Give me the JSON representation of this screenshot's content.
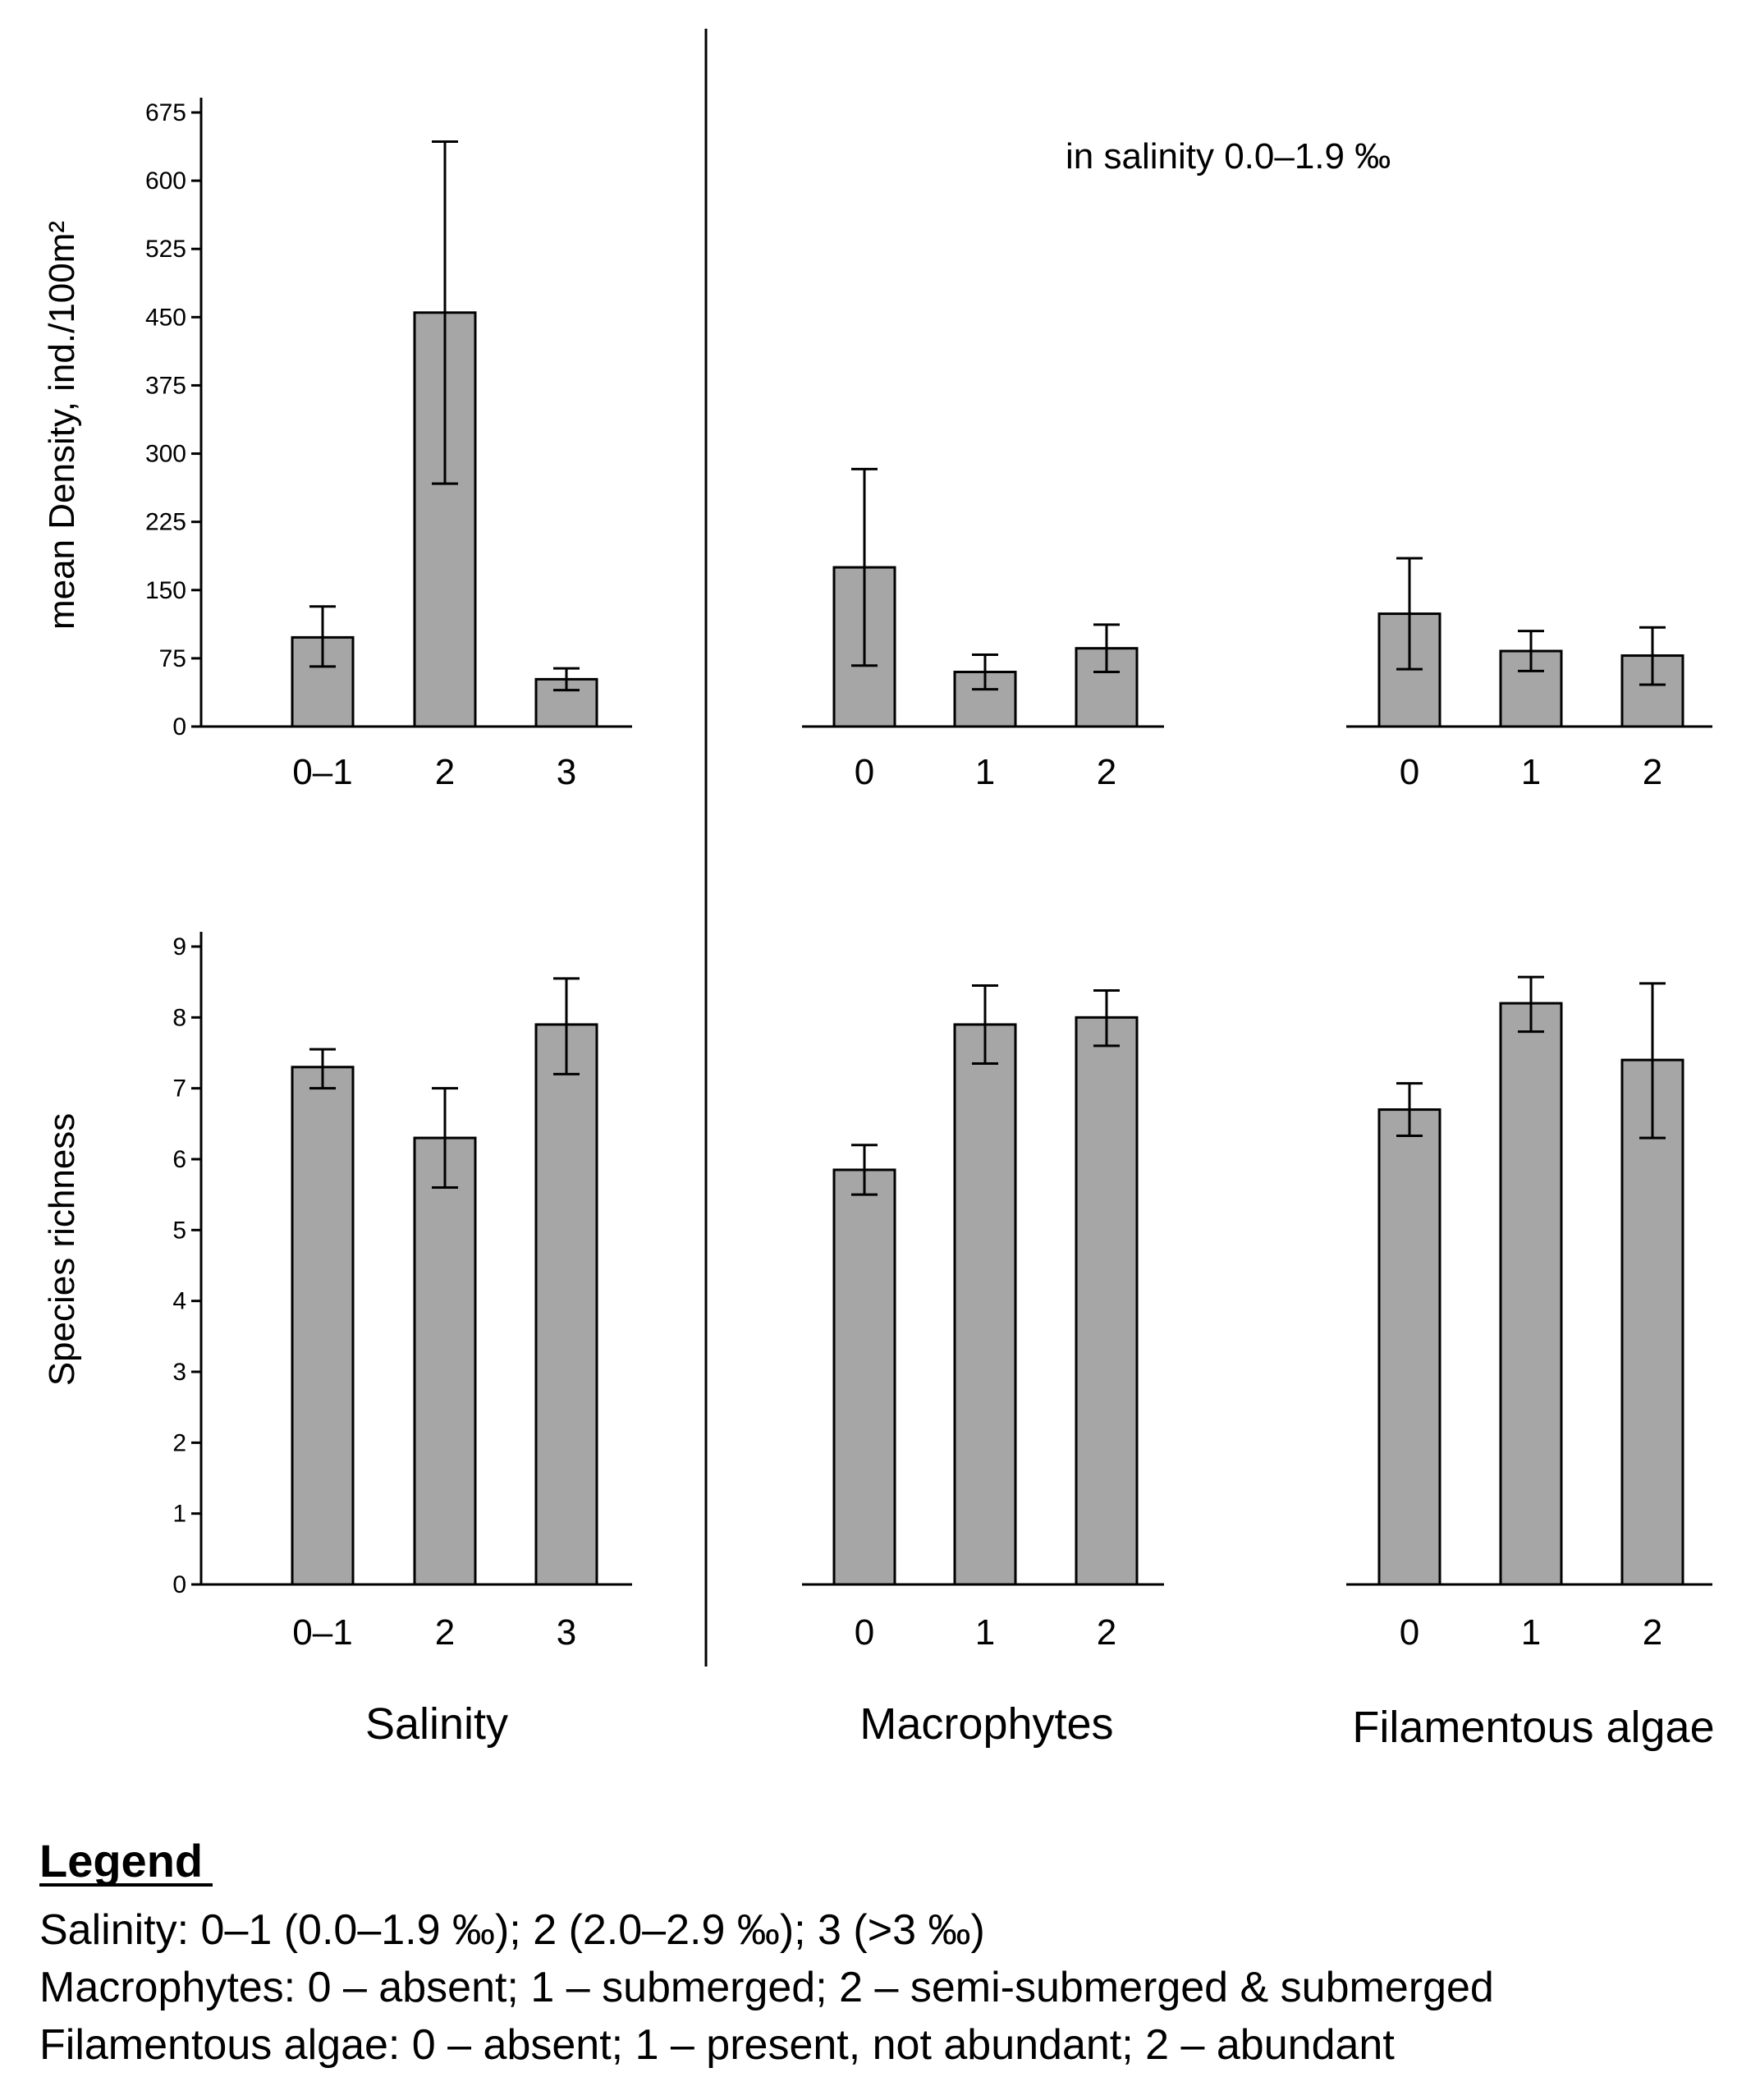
{
  "annotation": "in salinity 0.0–1.9 ‰",
  "colors": {
    "bar_fill": "#a6a6a6",
    "bar_stroke": "#000000",
    "axis": "#000000"
  },
  "chart_data": [
    {
      "id": "density-salinity",
      "type": "bar",
      "row": "density",
      "group": "Salinity",
      "ylabel": "mean Density, ind./100m²",
      "ylim": [
        0,
        675
      ],
      "yticks": [
        "0",
        "75",
        "150",
        "225",
        "300",
        "375",
        "450",
        "525",
        "600",
        "675"
      ],
      "categories": [
        "0–1",
        "2",
        "3"
      ],
      "values": [
        98,
        455,
        52
      ],
      "err_low": [
        66,
        267,
        40
      ],
      "err_high": [
        132,
        643,
        64
      ]
    },
    {
      "id": "density-macrophytes",
      "type": "bar",
      "row": "density",
      "group": "Macrophytes",
      "ylim": [
        0,
        675
      ],
      "categories": [
        "0",
        "1",
        "2"
      ],
      "values": [
        175,
        60,
        86
      ],
      "err_low": [
        67,
        41,
        60
      ],
      "err_high": [
        283,
        79,
        112
      ]
    },
    {
      "id": "density-filamentous",
      "type": "bar",
      "row": "density",
      "group": "Filamentous algae",
      "ylim": [
        0,
        675
      ],
      "categories": [
        "0",
        "1",
        "2"
      ],
      "values": [
        124,
        83,
        78
      ],
      "err_low": [
        63,
        61,
        46
      ],
      "err_high": [
        185,
        105,
        109
      ]
    },
    {
      "id": "richness-salinity",
      "type": "bar",
      "row": "richness",
      "group": "Salinity",
      "ylabel": "Species richness",
      "ylim": [
        0,
        9
      ],
      "yticks": [
        "0",
        "1",
        "2",
        "3",
        "4",
        "5",
        "6",
        "7",
        "8",
        "9"
      ],
      "categories": [
        "0–1",
        "2",
        "3"
      ],
      "values": [
        7.3,
        6.3,
        7.9
      ],
      "err_low": [
        7.0,
        5.6,
        7.2
      ],
      "err_high": [
        7.55,
        7.0,
        8.55
      ]
    },
    {
      "id": "richness-macrophytes",
      "type": "bar",
      "row": "richness",
      "group": "Macrophytes",
      "ylim": [
        0,
        9
      ],
      "categories": [
        "0",
        "1",
        "2"
      ],
      "values": [
        5.85,
        7.9,
        8.0
      ],
      "err_low": [
        5.5,
        7.35,
        7.6
      ],
      "err_high": [
        6.2,
        8.45,
        8.38
      ]
    },
    {
      "id": "richness-filamentous",
      "type": "bar",
      "row": "richness",
      "group": "Filamentous algae",
      "ylim": [
        0,
        9
      ],
      "categories": [
        "0",
        "1",
        "2"
      ],
      "values": [
        6.7,
        8.2,
        7.4
      ],
      "err_low": [
        6.33,
        7.8,
        6.3
      ],
      "err_high": [
        7.07,
        8.57,
        8.48
      ]
    }
  ],
  "group_labels": [
    "Salinity",
    "Macrophytes",
    "Filamentous algae"
  ],
  "legend": {
    "title": "Legend",
    "lines": [
      "Salinity: 0–1 (0.0–1.9 ‰); 2 (2.0–2.9 ‰); 3 (>3 ‰)",
      "Macrophytes: 0 – absent; 1 – submerged; 2 – semi-submerged & submerged",
      "Filamentous algae: 0 – absent; 1 – present, not abundant; 2 – abundant"
    ]
  }
}
